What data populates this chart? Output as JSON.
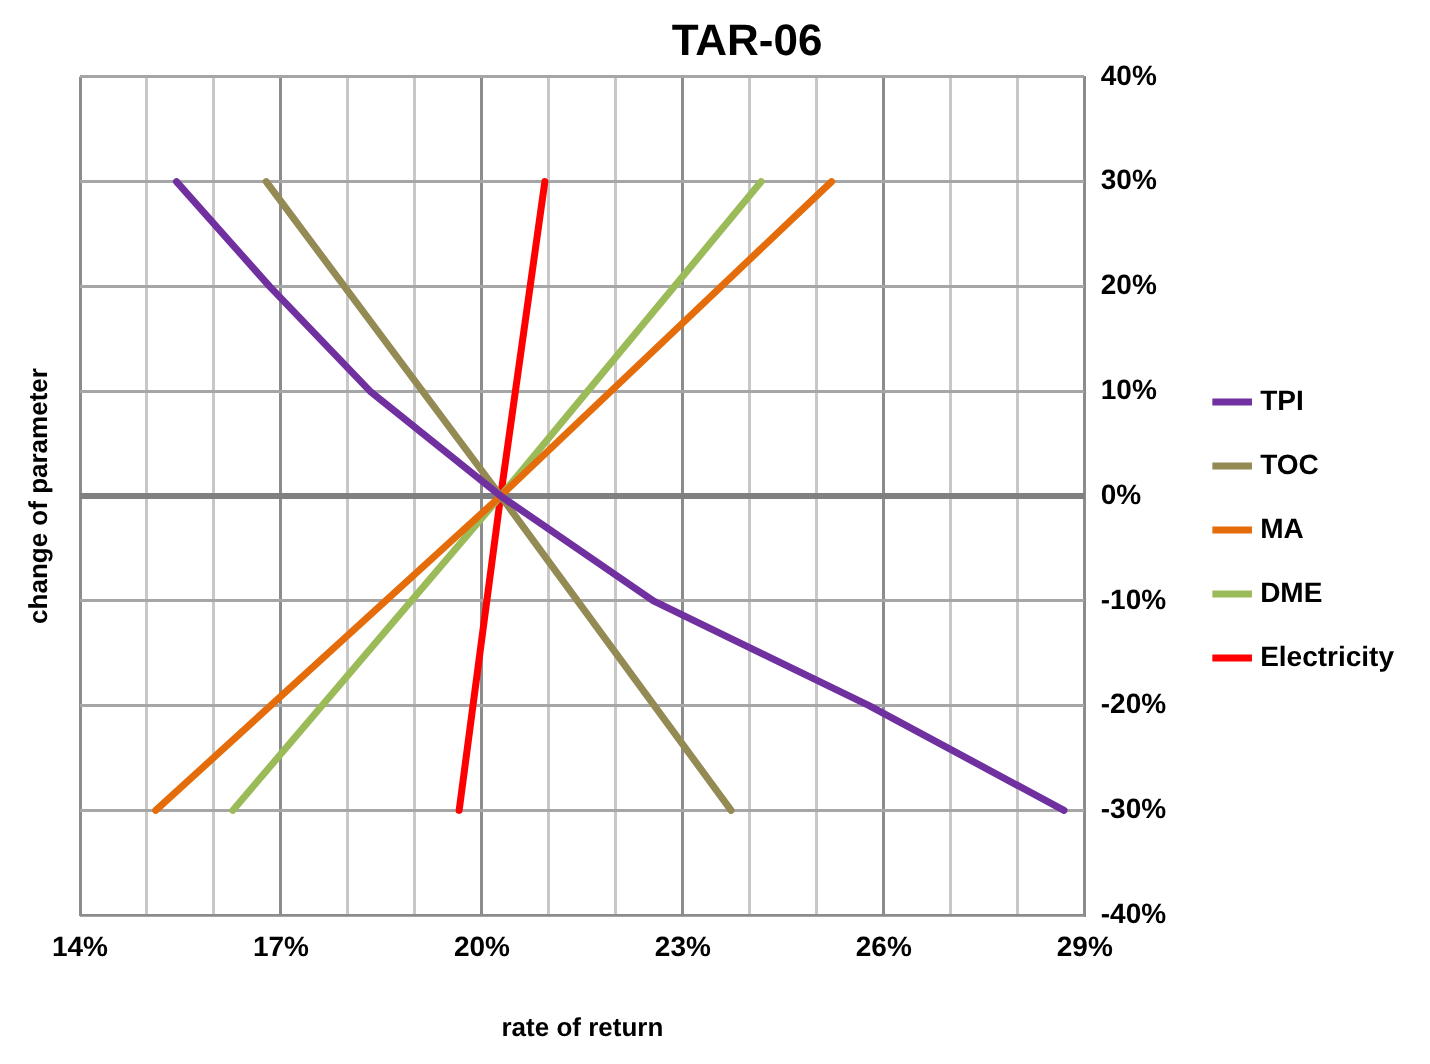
{
  "chart_data": {
    "type": "line",
    "title": "TAR-06",
    "xlabel": "rate of return",
    "ylabel": "change of parameter",
    "series": [
      {
        "name": "TPI",
        "color": "#7030a0",
        "x": [
          15.44,
          16.83,
          18.33,
          20.28,
          22.56,
          25.78,
          28.69
        ],
        "values": [
          30,
          20,
          10,
          0,
          -10,
          -20,
          -30
        ]
      },
      {
        "name": "TOC",
        "color": "#948a54",
        "x": [
          16.78,
          20.28,
          23.72
        ],
        "values": [
          30,
          0,
          -30
        ]
      },
      {
        "name": "MA",
        "color": "#e46c0a",
        "x": [
          15.13,
          20.28,
          25.22
        ],
        "values": [
          -30,
          0,
          30
        ]
      },
      {
        "name": "DME",
        "color": "#9bbb59",
        "x": [
          16.28,
          20.28,
          24.17
        ],
        "values": [
          -30,
          0,
          30
        ]
      },
      {
        "name": "Electricity",
        "color": "#ff0000",
        "x": [
          19.66,
          20.28,
          20.94
        ],
        "values": [
          -30,
          0,
          30
        ]
      }
    ],
    "xlim": [
      14,
      29
    ],
    "xticks": [
      {
        "value": 14,
        "label": "14%"
      },
      {
        "value": 15,
        "label": null
      },
      {
        "value": 16,
        "label": null
      },
      {
        "value": 17,
        "label": "17%"
      },
      {
        "value": 18,
        "label": null
      },
      {
        "value": 19,
        "label": null
      },
      {
        "value": 20,
        "label": "20%"
      },
      {
        "value": 21,
        "label": null
      },
      {
        "value": 22,
        "label": null
      },
      {
        "value": 23,
        "label": "23%"
      },
      {
        "value": 24,
        "label": null
      },
      {
        "value": 25,
        "label": null
      },
      {
        "value": 26,
        "label": "26%"
      },
      {
        "value": 27,
        "label": null
      },
      {
        "value": 28,
        "label": null
      },
      {
        "value": 29,
        "label": "29%"
      }
    ],
    "ylim": [
      -40,
      40
    ],
    "yticks": [
      {
        "value": -40,
        "label": "-40%"
      },
      {
        "value": -30,
        "label": "-30%"
      },
      {
        "value": -20,
        "label": "-20%"
      },
      {
        "value": -10,
        "label": "-10%"
      },
      {
        "value": 0,
        "label": "0%"
      },
      {
        "value": 10,
        "label": "10%"
      },
      {
        "value": 20,
        "label": "20%"
      },
      {
        "value": 30,
        "label": "30%"
      },
      {
        "value": 40,
        "label": "40%"
      }
    ],
    "ref_lines": [
      {
        "axis": "y",
        "value": 0,
        "color": "#808080"
      }
    ],
    "grid": true,
    "legend": "right",
    "marker": "none",
    "line_style": "solid"
  }
}
